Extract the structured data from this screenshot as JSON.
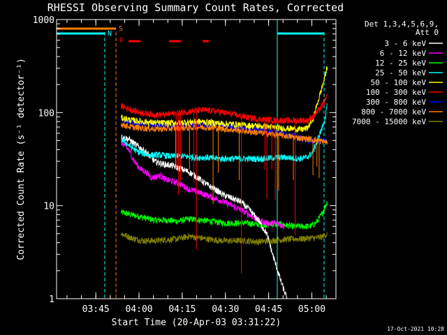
{
  "chart_data": {
    "type": "line",
    "title": "RHESSI Observing Summary Count Rates, Corrected",
    "xlabel": "Start Time (20-Apr-03 03:31:22)",
    "ylabel": "Corrected Count Rate (s⁻¹ detector⁻¹)",
    "yscale": "log",
    "ylim": [
      1,
      1000
    ],
    "xlim_minutes": [
      0,
      97
    ],
    "xticks": [
      {
        "label": "03:45",
        "min": 13.63
      },
      {
        "label": "04:00",
        "min": 28.63
      },
      {
        "label": "04:15",
        "min": 43.63
      },
      {
        "label": "04:30",
        "min": 58.63
      },
      {
        "label": "04:45",
        "min": 73.63
      },
      {
        "label": "05:00",
        "min": 88.63
      }
    ],
    "yticks": [
      {
        "label": "1",
        "v": 1
      },
      {
        "label": "10",
        "v": 10
      },
      {
        "label": "100",
        "v": 100
      },
      {
        "label": "1000",
        "v": 1000
      }
    ],
    "legend_header": [
      "Det 1,3,4,5,6,9,",
      "Att 0"
    ],
    "series": [
      {
        "name": "3 - 6 keV",
        "color": "#ffffff",
        "start": 22.4,
        "end": 94,
        "points": [
          [
            22.4,
            55
          ],
          [
            25,
            52
          ],
          [
            28,
            44
          ],
          [
            31,
            38
          ],
          [
            34,
            30
          ],
          [
            37,
            28
          ],
          [
            40,
            27
          ],
          [
            43,
            25
          ],
          [
            46,
            23
          ],
          [
            49,
            20
          ],
          [
            52,
            17
          ],
          [
            55,
            15
          ],
          [
            58,
            13
          ],
          [
            61,
            12
          ],
          [
            64,
            11
          ],
          [
            67,
            9
          ],
          [
            70,
            7
          ],
          [
            73,
            5
          ],
          [
            75,
            3
          ],
          [
            78,
            1.5
          ],
          [
            80,
            1
          ]
        ]
      },
      {
        "name": "6 - 12 keV",
        "color": "#ff00ff",
        "start": 22.4,
        "end": 94,
        "points": [
          [
            22.4,
            48
          ],
          [
            25,
            40
          ],
          [
            27,
            30
          ],
          [
            29,
            25
          ],
          [
            31,
            23
          ],
          [
            33,
            20
          ],
          [
            36,
            21
          ],
          [
            38,
            19
          ],
          [
            41,
            18
          ],
          [
            43,
            17
          ],
          [
            46,
            15
          ],
          [
            49,
            14
          ],
          [
            52,
            13
          ],
          [
            55,
            12
          ],
          [
            58,
            11
          ],
          [
            61,
            10
          ],
          [
            64,
            9
          ],
          [
            67,
            8
          ],
          [
            70,
            7
          ],
          [
            73,
            6.5
          ],
          [
            76,
            6.5
          ],
          [
            79,
            6
          ]
        ]
      },
      {
        "name": "12 - 25 keV",
        "color": "#00ff00",
        "start": 22.4,
        "end": 94,
        "points": [
          [
            22.4,
            8.5
          ],
          [
            26,
            8
          ],
          [
            30,
            7.5
          ],
          [
            34,
            7
          ],
          [
            38,
            7
          ],
          [
            42,
            6.8
          ],
          [
            46,
            7.2
          ],
          [
            50,
            7
          ],
          [
            54,
            6.8
          ],
          [
            58,
            6.5
          ],
          [
            62,
            6.5
          ],
          [
            66,
            6.5
          ],
          [
            70,
            6.3
          ],
          [
            74,
            6.3
          ],
          [
            78,
            6.3
          ],
          [
            82,
            6
          ],
          [
            85,
            6
          ],
          [
            88,
            6
          ],
          [
            90,
            6.5
          ],
          [
            92,
            8
          ],
          [
            94,
            11
          ]
        ]
      },
      {
        "name": "25 - 50 keV",
        "color": "#00ffff",
        "start": 22.4,
        "end": 94,
        "points": [
          [
            22.4,
            52
          ],
          [
            25,
            45
          ],
          [
            28,
            38
          ],
          [
            32,
            35
          ],
          [
            36,
            35
          ],
          [
            40,
            34
          ],
          [
            44,
            34
          ],
          [
            48,
            33
          ],
          [
            52,
            33
          ],
          [
            56,
            32
          ],
          [
            60,
            32
          ],
          [
            64,
            32
          ],
          [
            68,
            32
          ],
          [
            72,
            32
          ],
          [
            76,
            33
          ],
          [
            80,
            33
          ],
          [
            84,
            32
          ],
          [
            87,
            33
          ],
          [
            89,
            38
          ],
          [
            91,
            55
          ],
          [
            93,
            80
          ],
          [
            94,
            120
          ]
        ]
      },
      {
        "name": "50 - 100 keV",
        "color": "#ffff00",
        "start": 22.4,
        "end": 94,
        "points": [
          [
            22.4,
            88
          ],
          [
            26,
            83
          ],
          [
            30,
            80
          ],
          [
            34,
            78
          ],
          [
            38,
            77
          ],
          [
            42,
            78
          ],
          [
            46,
            79
          ],
          [
            50,
            80
          ],
          [
            54,
            78
          ],
          [
            58,
            76
          ],
          [
            62,
            75
          ],
          [
            66,
            73
          ],
          [
            70,
            72
          ],
          [
            74,
            70
          ],
          [
            78,
            68
          ],
          [
            82,
            67
          ],
          [
            85,
            66
          ],
          [
            87,
            68
          ],
          [
            89,
            85
          ],
          [
            91,
            140
          ],
          [
            93,
            230
          ],
          [
            94,
            320
          ]
        ]
      },
      {
        "name": "100 - 300 keV",
        "color": "#ff0000",
        "start": 22.4,
        "end": 94,
        "points": [
          [
            22.4,
            118
          ],
          [
            25,
            110
          ],
          [
            28,
            102
          ],
          [
            31,
            98
          ],
          [
            34,
            95
          ],
          [
            37,
            95
          ],
          [
            40,
            97
          ],
          [
            43,
            100
          ],
          [
            46,
            103
          ],
          [
            49,
            106
          ],
          [
            52,
            106
          ],
          [
            55,
            104
          ],
          [
            58,
            100
          ],
          [
            61,
            96
          ],
          [
            64,
            92
          ],
          [
            67,
            88
          ],
          [
            70,
            85
          ],
          [
            73,
            84
          ],
          [
            76,
            83
          ],
          [
            79,
            82
          ],
          [
            82,
            82
          ],
          [
            85,
            83
          ],
          [
            87,
            82
          ],
          [
            89,
            90
          ],
          [
            91,
            105
          ],
          [
            93,
            130
          ],
          [
            94,
            150
          ]
        ]
      },
      {
        "name": "300 - 800 keV",
        "color": "#0000ff",
        "start": 22.4,
        "end": 94,
        "points": [
          [
            22.4,
            85
          ],
          [
            26,
            79
          ],
          [
            30,
            76
          ],
          [
            34,
            73
          ],
          [
            38,
            72
          ],
          [
            42,
            72
          ],
          [
            46,
            73
          ],
          [
            50,
            74
          ],
          [
            54,
            73
          ],
          [
            58,
            72
          ],
          [
            62,
            70
          ],
          [
            66,
            68
          ],
          [
            70,
            66
          ],
          [
            74,
            63
          ],
          [
            78,
            60
          ],
          [
            82,
            57
          ],
          [
            85,
            53
          ],
          [
            88,
            50
          ],
          [
            91,
            50
          ],
          [
            94,
            50
          ]
        ]
      },
      {
        "name": "800 - 7000 keV",
        "color": "#ff8000",
        "start": 22.4,
        "end": 94,
        "points": [
          [
            22.4,
            75
          ],
          [
            26,
            70
          ],
          [
            30,
            68
          ],
          [
            34,
            67
          ],
          [
            38,
            67
          ],
          [
            42,
            68
          ],
          [
            46,
            69
          ],
          [
            50,
            70
          ],
          [
            54,
            69
          ],
          [
            58,
            67
          ],
          [
            62,
            65
          ],
          [
            66,
            63
          ],
          [
            70,
            61
          ],
          [
            74,
            59
          ],
          [
            78,
            57
          ],
          [
            82,
            55
          ],
          [
            85,
            53
          ],
          [
            88,
            52
          ],
          [
            91,
            50
          ],
          [
            94,
            48
          ]
        ]
      },
      {
        "name": "7000 - 15000 keV",
        "color": "#808000",
        "start": 22.4,
        "end": 94,
        "points": [
          [
            22.4,
            5
          ],
          [
            26,
            4.5
          ],
          [
            30,
            4.2
          ],
          [
            34,
            4.2
          ],
          [
            38,
            4.3
          ],
          [
            42,
            4.4
          ],
          [
            46,
            4.7
          ],
          [
            50,
            4.5
          ],
          [
            54,
            4.3
          ],
          [
            58,
            4.2
          ],
          [
            62,
            4.2
          ],
          [
            66,
            4.2
          ],
          [
            70,
            4.1
          ],
          [
            74,
            4.2
          ],
          [
            78,
            4.3
          ],
          [
            82,
            4.4
          ],
          [
            85,
            4.4
          ],
          [
            88,
            4.5
          ],
          [
            90,
            4.5
          ],
          [
            92,
            4.6
          ],
          [
            94,
            5
          ]
        ]
      }
    ],
    "flags": [
      {
        "label": "S",
        "color": "#ff8000"
      },
      {
        "label": "N",
        "color": "#00ffff"
      },
      {
        "label": "F",
        "color": "#ff0000"
      }
    ],
    "footer_date": "17-Oct-2021 10:28"
  }
}
